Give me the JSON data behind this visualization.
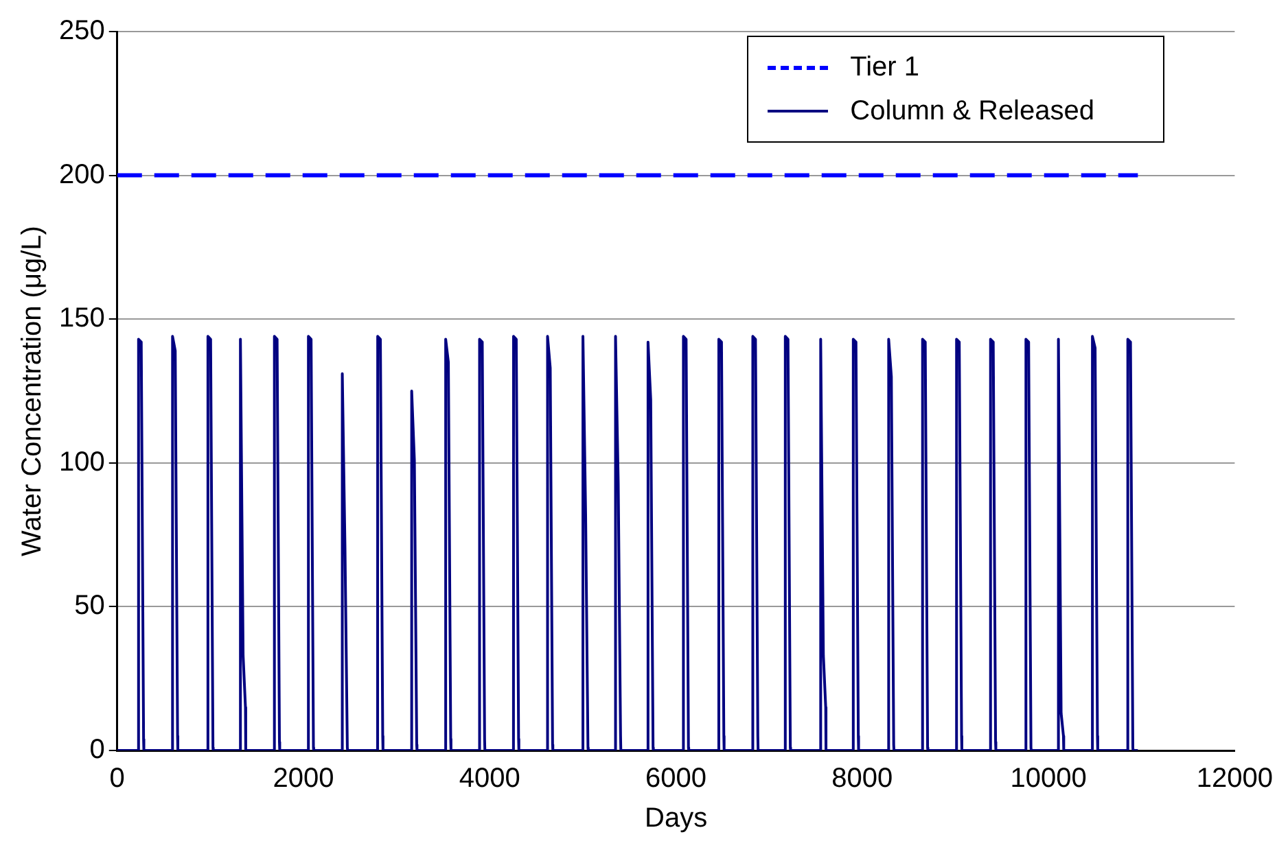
{
  "chart_data": {
    "type": "line",
    "xlabel": "Days",
    "ylabel": "Water Concentration (μg/L)",
    "xlim": [
      0,
      12000
    ],
    "xticks": [
      0,
      2000,
      4000,
      6000,
      8000,
      10000,
      12000
    ],
    "ylim": [
      0,
      250
    ],
    "yticks": [
      0,
      50,
      100,
      150,
      200,
      250
    ],
    "grid": "y",
    "legend": "top right",
    "marker": "none",
    "series": [
      {
        "name": "Tier 1",
        "color": "#0000ff",
        "line_style": "dashed",
        "x": [
          0,
          10960
        ],
        "values": [
          200,
          200
        ]
      },
      {
        "name": "Column & Released",
        "color": "#000080",
        "line_style": "solid",
        "x": [
          0,
          228,
          229,
          258,
          283,
          286,
          593,
          594,
          623,
          648,
          651,
          973,
          974,
          1003,
          1028,
          1031,
          1322,
          1323,
          1352,
          1377,
          1380,
          1687,
          1688,
          1717,
          1742,
          1745,
          2052,
          2053,
          2082,
          2107,
          2110,
          2416,
          2417,
          2446,
          2471,
          2474,
          2796,
          2797,
          2826,
          2851,
          2854,
          3161,
          3162,
          3191,
          3216,
          3219,
          3526,
          3527,
          3556,
          3581,
          3584,
          3890,
          3891,
          3920,
          3945,
          3948,
          4255,
          4256,
          4285,
          4310,
          4313,
          4620,
          4621,
          4650,
          4675,
          4678,
          5000,
          5001,
          5030,
          5055,
          5058,
          5350,
          5351,
          5380,
          5405,
          5408,
          5699,
          5700,
          5729,
          5754,
          5757,
          6079,
          6080,
          6109,
          6134,
          6137,
          6459,
          6460,
          6489,
          6514,
          6517,
          6824,
          6825,
          6854,
          6879,
          6882,
          7173,
          7174,
          7203,
          7228,
          7231,
          7553,
          7554,
          7583,
          7608,
          7611,
          7903,
          7904,
          7933,
          7958,
          7961,
          8283,
          8284,
          8313,
          8338,
          8341,
          8647,
          8648,
          8677,
          8702,
          8705,
          9012,
          9013,
          9042,
          9067,
          9070,
          9377,
          9378,
          9407,
          9432,
          9435,
          9757,
          9758,
          9787,
          9812,
          9815,
          10106,
          10107,
          10136,
          10161,
          10164,
          10471,
          10472,
          10501,
          10526,
          10529,
          10851,
          10852,
          10881,
          10906,
          10909,
          10960
        ],
        "values": [
          0,
          0,
          143,
          142,
          4,
          0,
          0,
          144,
          139,
          5,
          0,
          0,
          144,
          143,
          1,
          0,
          0,
          143,
          33,
          15,
          0,
          0,
          144,
          143,
          3,
          0,
          0,
          144,
          143,
          1,
          0,
          0,
          131,
          70,
          1,
          0,
          0,
          144,
          143,
          5,
          0,
          0,
          125,
          101,
          2,
          0,
          0,
          143,
          135,
          4,
          0,
          0,
          143,
          142,
          4,
          0,
          0,
          144,
          143,
          4,
          0,
          0,
          144,
          133,
          2,
          0,
          0,
          144,
          82,
          1,
          0,
          0,
          144,
          93,
          5,
          0,
          0,
          142,
          122,
          1,
          0,
          0,
          144,
          143,
          1,
          0,
          0,
          143,
          142,
          5,
          0,
          0,
          144,
          143,
          5,
          0,
          0,
          144,
          143,
          1,
          0,
          0,
          143,
          33,
          15,
          0,
          0,
          143,
          142,
          5,
          0,
          0,
          143,
          130,
          2,
          0,
          0,
          143,
          142,
          1,
          0,
          0,
          143,
          142,
          5,
          0,
          0,
          143,
          142,
          3,
          0,
          0,
          143,
          142,
          1,
          0,
          0,
          143,
          13,
          5,
          0,
          0,
          144,
          140,
          5,
          0,
          0,
          143,
          142,
          1,
          0,
          0
        ]
      }
    ]
  }
}
